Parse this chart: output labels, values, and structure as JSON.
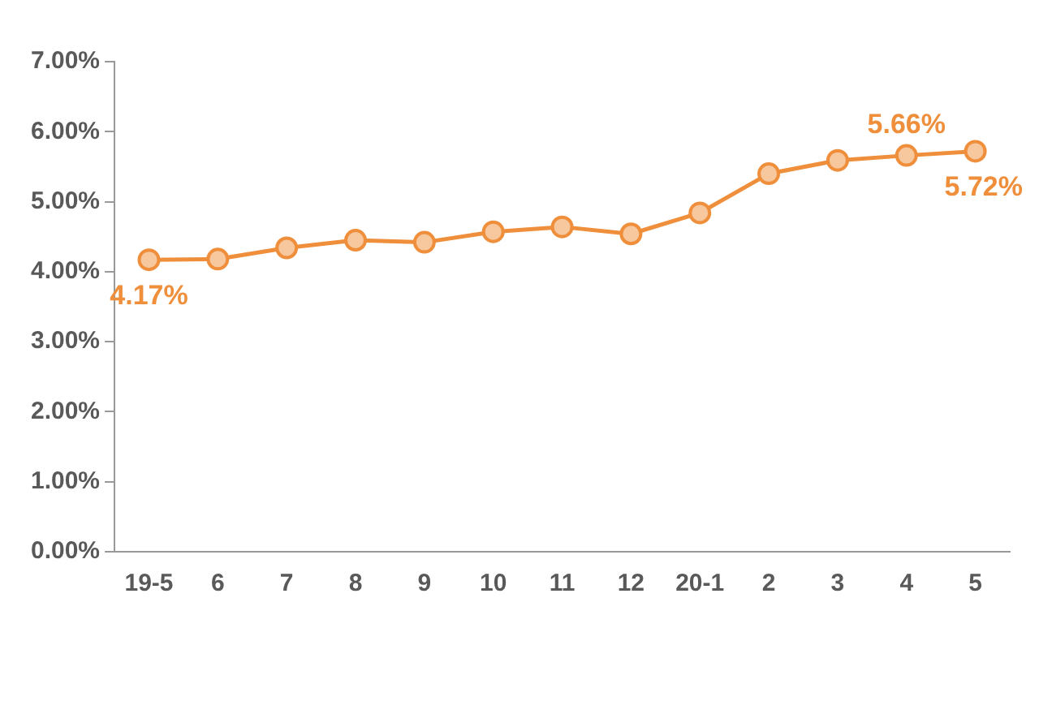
{
  "chart_data": {
    "type": "line",
    "categories": [
      "19-5",
      "6",
      "7",
      "8",
      "9",
      "10",
      "11",
      "12",
      "20-1",
      "2",
      "3",
      "4",
      "5"
    ],
    "series": [
      {
        "color": "#ef8f3c",
        "values": [
          4.17,
          4.18,
          4.34,
          4.45,
          4.42,
          4.57,
          4.64,
          4.54,
          4.84,
          5.4,
          5.59,
          5.66,
          5.72
        ],
        "value_labels": [
          "4.17%",
          null,
          null,
          null,
          null,
          null,
          null,
          null,
          null,
          null,
          null,
          "5.66%",
          "5.72%"
        ]
      }
    ],
    "ylim": [
      0,
      7
    ],
    "yticks": [
      {
        "value": 0,
        "label": "0.00%"
      },
      {
        "value": 1,
        "label": "1.00%"
      },
      {
        "value": 2,
        "label": "2.00%"
      },
      {
        "value": 3,
        "label": "3.00%"
      },
      {
        "value": 4,
        "label": "4.00%"
      },
      {
        "value": 5,
        "label": "5.00%"
      },
      {
        "value": 6,
        "label": "6.00%"
      },
      {
        "value": 7,
        "label": "7.00%"
      }
    ],
    "grid": false,
    "legend": false,
    "marker": "circle",
    "line_style": "solid"
  }
}
